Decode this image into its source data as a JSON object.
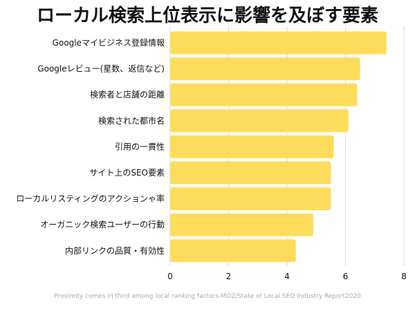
{
  "chart_data": {
    "type": "bar",
    "orientation": "horizontal",
    "title": "ローカル検索上位表示に影響を及ぼす要素",
    "caption": "Proximity comes in third among local  ranking factors-MOZ/State of Local SEO Industry Report2020",
    "categories": [
      "Googleマイビジネス登録情報",
      "Googleレビュー(星数、返信など)",
      "検索者と店舗の距離",
      "検索された都市名",
      "引用の一貫性",
      "サイト上のSEO要素",
      "ローカルリスティングのアクションゃ率",
      "オーガニック検索ユーザーの行動",
      "内部リンクの品質・有効性"
    ],
    "values": [
      7.4,
      6.5,
      6.4,
      6.1,
      5.6,
      5.5,
      5.5,
      4.9,
      4.3
    ],
    "xlim": [
      0,
      8
    ],
    "xticks": [
      "0",
      "2",
      "4",
      "6",
      "8"
    ],
    "grid": true,
    "bar_color": "#fddc5c",
    "grid_color": "#d9d9d9"
  }
}
